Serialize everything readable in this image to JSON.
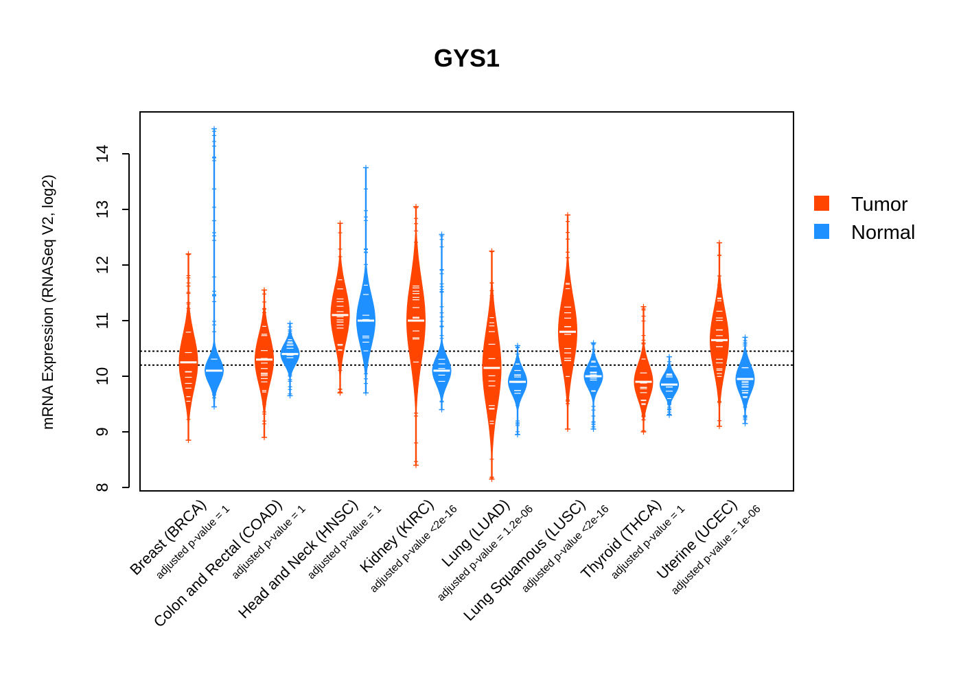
{
  "chart_data": {
    "type": "bean",
    "title": "GYS1",
    "xlabel": "",
    "ylabel": "mRNA Expression (RNASeq V2, log2)",
    "ylim": [
      7.85,
      14.65
    ],
    "yticks": [
      8,
      9,
      10,
      11,
      12,
      13,
      14
    ],
    "reference_lines": [
      10.2,
      10.45
    ],
    "colors": {
      "Tumor": "#FF4500",
      "Normal": "#1E90FF"
    },
    "legend": {
      "position": "right",
      "entries": [
        "Tumor",
        "Normal"
      ]
    },
    "categories": [
      {
        "label": "Breast (BRCA)",
        "pvalue": "adjusted p-value = 1"
      },
      {
        "label": "Colon and Rectal (COAD)",
        "pvalue": "adjusted p-value = 1"
      },
      {
        "label": "Head and Neck (HNSC)",
        "pvalue": "adjusted p-value = 1"
      },
      {
        "label": "Kidney (KIRC)",
        "pvalue": "adjusted p-value <2e-16"
      },
      {
        "label": "Lung (LUAD)",
        "pvalue": "adjusted p-value = 1.2e-06"
      },
      {
        "label": "Lung Squamous (LUSC)",
        "pvalue": "adjusted p-value <2e-16"
      },
      {
        "label": "Thyroid (THCA)",
        "pvalue": "adjusted p-value = 1"
      },
      {
        "label": "Uterine (UCEC)",
        "pvalue": "adjusted p-value = 1e-06"
      }
    ],
    "series": [
      {
        "name": "Tumor",
        "medians": [
          10.25,
          10.3,
          11.1,
          11.0,
          10.15,
          10.8,
          9.9,
          10.65
        ],
        "min": [
          8.85,
          8.9,
          9.7,
          8.4,
          8.15,
          9.05,
          9.0,
          9.1
        ],
        "max": [
          12.2,
          11.55,
          12.75,
          13.05,
          12.25,
          12.9,
          11.25,
          12.4
        ]
      },
      {
        "name": "Normal",
        "medians": [
          10.1,
          10.4,
          11.0,
          10.1,
          9.9,
          10.0,
          9.85,
          9.95
        ],
        "min": [
          9.45,
          9.65,
          9.7,
          9.4,
          8.95,
          9.05,
          9.3,
          9.15
        ],
        "max": [
          14.45,
          10.95,
          13.75,
          12.55,
          10.55,
          10.6,
          10.35,
          10.7
        ]
      }
    ]
  }
}
